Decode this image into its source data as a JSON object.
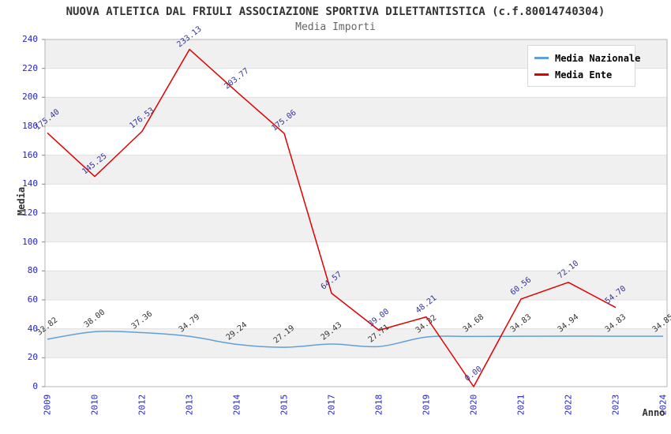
{
  "header": {
    "title": "NUOVA ATLETICA DAL FRIULI ASSOCIAZIONE SPORTIVA DILETTANTISTICA (c.f.80014740304)",
    "subtitle": "Media Importi"
  },
  "colors": {
    "tick_text": "#2222cc",
    "grid_line": "#e0e0e0",
    "plot_border": "#b5b5b5",
    "band_white": "#ffffff",
    "band_gray": "#f0f0f0",
    "title_text": "#333333",
    "subtitle_text": "#666666"
  },
  "chart_data": {
    "type": "line",
    "title": "NUOVA ATLETICA DAL FRIULI ASSOCIAZIONE SPORTIVA DILETTANTISTICA (c.f.80014740304)",
    "subtitle": "Media Importi",
    "xlabel": "Anno",
    "ylabel": "Media",
    "categories": [
      "2009",
      "2010",
      "2012",
      "2013",
      "2014",
      "2015",
      "2017",
      "2018",
      "2019",
      "2020",
      "2021",
      "2022",
      "2023",
      "2024"
    ],
    "ylim": [
      0,
      240
    ],
    "ytick_step": 20,
    "yticks": [
      0,
      20,
      40,
      60,
      80,
      100,
      120,
      140,
      160,
      180,
      200,
      220,
      240
    ],
    "grid": "horizontal-bands",
    "band_colors": [
      "#ffffff",
      "#f0f0f0"
    ],
    "legend_position": "top-right",
    "series": [
      {
        "name": "Media Nazionale",
        "color": "#60a0d8",
        "label_color": "#333333",
        "smooth": true,
        "values": [
          32.82,
          38.0,
          37.36,
          34.79,
          29.24,
          27.19,
          29.43,
          27.71,
          34.32,
          34.68,
          34.83,
          34.94,
          34.83,
          34.85
        ],
        "labels": [
          "32.82",
          "38.00",
          "37.36",
          "34.79",
          "29.24",
          "27.19",
          "29.43",
          "27.71",
          "34.32",
          "34.68",
          "34.83",
          "34.94",
          "34.83",
          "34.85"
        ]
      },
      {
        "name": "Media Ente",
        "color": "#e00000",
        "label_color": "#333399",
        "smooth": false,
        "values": [
          175.4,
          145.25,
          176.53,
          233.13,
          203.77,
          175.06,
          64.57,
          39.0,
          48.21,
          0.0,
          60.56,
          72.1,
          54.7,
          null
        ],
        "labels": [
          "175.40",
          "145.25",
          "176.53",
          "233.13",
          "203.77",
          "175.06",
          "64.57",
          "39.00",
          "48.21",
          "0.00",
          "60.56",
          "72.10",
          "54.70",
          null
        ]
      }
    ]
  }
}
